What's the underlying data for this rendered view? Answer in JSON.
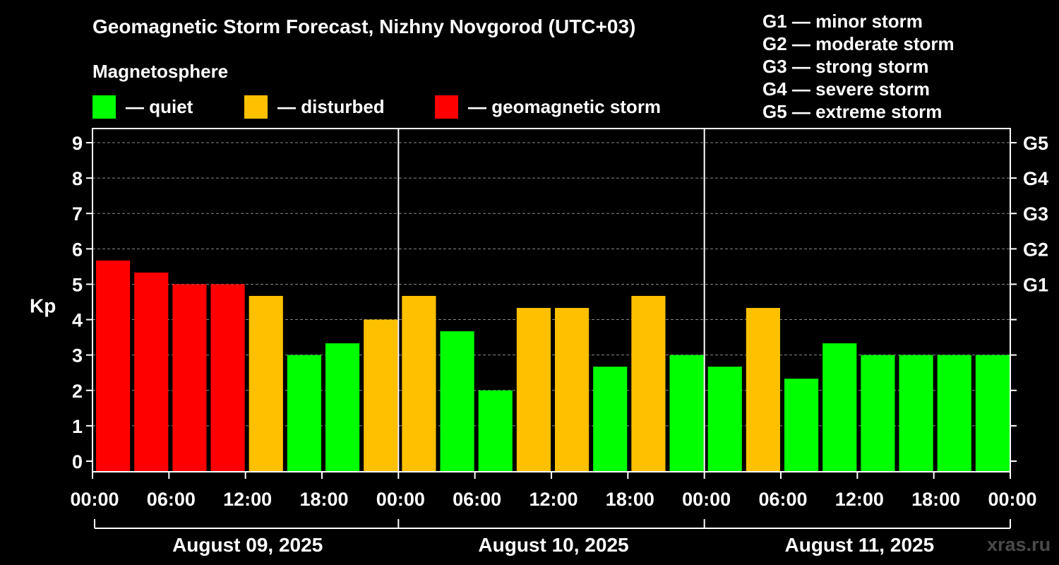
{
  "header": {
    "title": "Geomagnetic Storm Forecast, Nizhny Novgorod (UTC+03)",
    "subtitle": "Magnetosphere"
  },
  "legend": [
    {
      "label": "— quiet",
      "color": "#00ff00"
    },
    {
      "label": "— disturbed",
      "color": "#ffc000"
    },
    {
      "label": "— geomagnetic storm",
      "color": "#ff0000"
    }
  ],
  "g_scale": [
    "G1 — minor storm",
    "G2 — moderate storm",
    "G3 — strong storm",
    "G4 — severe storm",
    "G5 — extreme storm"
  ],
  "watermark": "xras.ru",
  "chart_data": {
    "type": "bar",
    "title": "Geomagnetic Storm Forecast, Nizhny Novgorod (UTC+03)",
    "ylabel": "Kp",
    "ylim": [
      -0.3,
      9.4
    ],
    "y_ticks": [
      "0",
      "1",
      "2",
      "3",
      "4",
      "5",
      "6",
      "7",
      "8",
      "9"
    ],
    "g_ticks": [
      {
        "label": "G1",
        "kp": 5
      },
      {
        "label": "G2",
        "kp": 6
      },
      {
        "label": "G3",
        "kp": 7
      },
      {
        "label": "G4",
        "kp": 8
      },
      {
        "label": "G5",
        "kp": 9
      }
    ],
    "x_ticks": [
      "00:00",
      "06:00",
      "12:00",
      "18:00",
      "00:00",
      "06:00",
      "12:00",
      "18:00",
      "00:00",
      "06:00",
      "12:00",
      "18:00",
      "00:00"
    ],
    "days": [
      "August 09, 2025",
      "August 10, 2025",
      "August 11, 2025"
    ],
    "interval_hours": 3,
    "values": [
      5.67,
      5.33,
      5.0,
      5.0,
      4.67,
      3.0,
      3.33,
      4.0,
      4.67,
      3.67,
      2.0,
      4.33,
      4.33,
      2.67,
      4.67,
      3.0,
      2.67,
      4.33,
      2.33,
      3.33,
      3.0,
      3.0,
      3.0,
      3.0
    ],
    "status": [
      "storm",
      "storm",
      "storm",
      "storm",
      "disturbed",
      "quiet",
      "quiet",
      "disturbed",
      "disturbed",
      "quiet",
      "quiet",
      "disturbed",
      "disturbed",
      "quiet",
      "disturbed",
      "quiet",
      "quiet",
      "disturbed",
      "quiet",
      "quiet",
      "quiet",
      "quiet",
      "quiet",
      "quiet"
    ],
    "colors": {
      "quiet": "#00ff00",
      "disturbed": "#ffc000",
      "storm": "#ff0000"
    },
    "grid": true
  }
}
